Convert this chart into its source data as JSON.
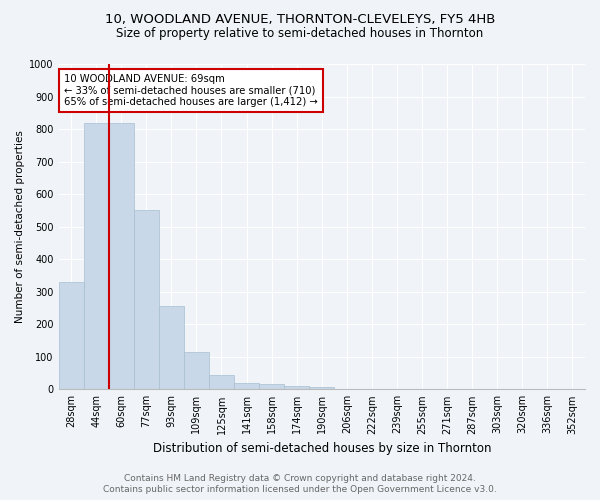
{
  "title": "10, WOODLAND AVENUE, THORNTON-CLEVELEYS, FY5 4HB",
  "subtitle": "Size of property relative to semi-detached houses in Thornton",
  "xlabel": "Distribution of semi-detached houses by size in Thornton",
  "ylabel": "Number of semi-detached properties",
  "footer1": "Contains HM Land Registry data © Crown copyright and database right 2024.",
  "footer2": "Contains public sector information licensed under the Open Government Licence v3.0.",
  "bin_labels": [
    "28sqm",
    "44sqm",
    "60sqm",
    "77sqm",
    "93sqm",
    "109sqm",
    "125sqm",
    "141sqm",
    "158sqm",
    "174sqm",
    "190sqm",
    "206sqm",
    "222sqm",
    "239sqm",
    "255sqm",
    "271sqm",
    "287sqm",
    "303sqm",
    "320sqm",
    "336sqm",
    "352sqm"
  ],
  "bar_values": [
    330,
    820,
    820,
    550,
    255,
    115,
    45,
    20,
    17,
    10,
    8,
    0,
    0,
    0,
    0,
    0,
    0,
    0,
    0,
    0,
    0
  ],
  "bar_color": "#c8d8e8",
  "bar_edgecolor": "#a8bfd0",
  "vline_color": "#cc0000",
  "vline_bin": 2,
  "annotation_text": "10 WOODLAND AVENUE: 69sqm\n← 33% of semi-detached houses are smaller (710)\n65% of semi-detached houses are larger (1,412) →",
  "annotation_box_facecolor": "#ffffff",
  "annotation_box_edgecolor": "#cc0000",
  "ylim": [
    0,
    1000
  ],
  "yticks": [
    0,
    100,
    200,
    300,
    400,
    500,
    600,
    700,
    800,
    900,
    1000
  ],
  "background_color": "#f0f4f8",
  "axes_background": "#f0f4f8",
  "title_fontsize": 9.5,
  "subtitle_fontsize": 8.5,
  "xlabel_fontsize": 8.5,
  "ylabel_fontsize": 7.5,
  "tick_fontsize": 7,
  "footer_fontsize": 6.5,
  "footer_color": "#666666"
}
